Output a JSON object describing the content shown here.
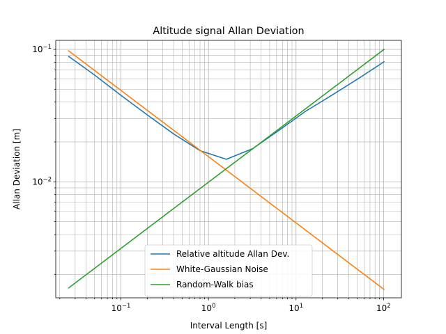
{
  "chart_data": {
    "type": "line",
    "title": "Altitude signal Allan Deviation",
    "xlabel": "Interval Length [s]",
    "ylabel": "Allan Deviation [m]",
    "xscale": "log",
    "yscale": "log",
    "xlim": [
      0.018,
      160
    ],
    "ylim": [
      0.00133,
      0.117
    ],
    "x_ticks": [
      {
        "value": 0.1,
        "base": "10",
        "exp": "−1"
      },
      {
        "value": 1,
        "base": "10",
        "exp": "0"
      },
      {
        "value": 10,
        "base": "10",
        "exp": "1"
      },
      {
        "value": 100,
        "base": "10",
        "exp": "2"
      }
    ],
    "y_ticks": [
      {
        "value": 0.01,
        "base": "10",
        "exp": "−2"
      },
      {
        "value": 0.1,
        "base": "10",
        "exp": "−1"
      }
    ],
    "grid": true,
    "grid_minor": true,
    "legend_position": "lower-center",
    "series": [
      {
        "name": "Relative altitude Allan Dev.",
        "color": "#1f77b4",
        "x": [
          0.025,
          0.05,
          0.1,
          0.2,
          0.4,
          0.8,
          1.6,
          3.2,
          6.4,
          12.8,
          25.6,
          51.2,
          102.4
        ],
        "y": [
          0.089,
          0.064,
          0.045,
          0.032,
          0.023,
          0.0172,
          0.0148,
          0.0178,
          0.0245,
          0.034,
          0.045,
          0.06,
          0.081
        ]
      },
      {
        "name": "White-Gaussian Noise",
        "color": "#ff7f0e",
        "x": [
          0.025,
          102.4
        ],
        "y": [
          0.098,
          0.00153
        ]
      },
      {
        "name": "Random-Walk bias",
        "color": "#2ca02c",
        "x": [
          0.025,
          102.4
        ],
        "y": [
          0.00157,
          0.1005
        ]
      }
    ]
  }
}
